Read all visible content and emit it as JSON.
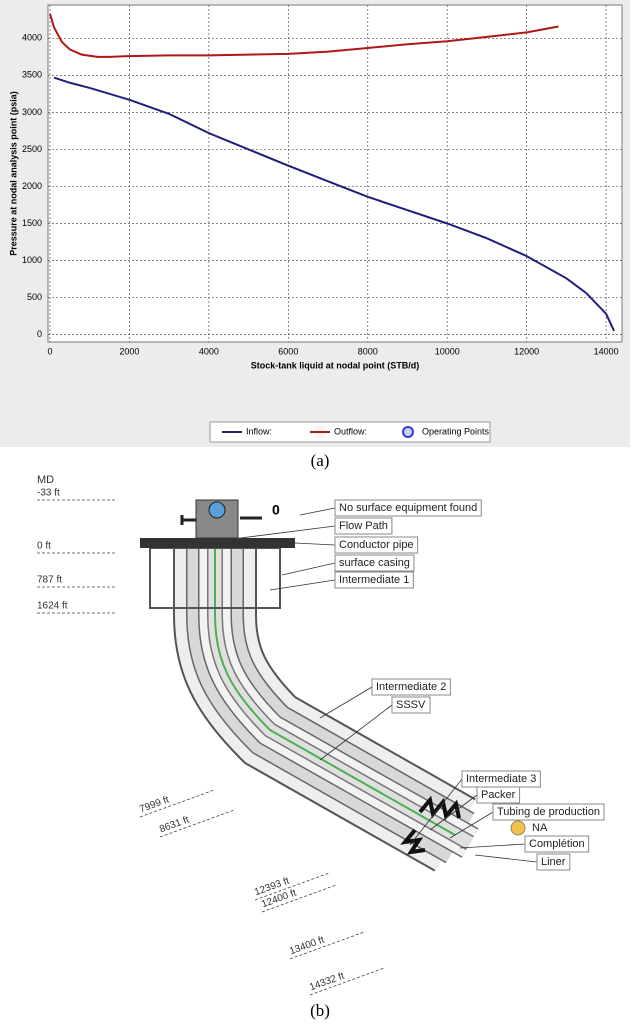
{
  "chart_data": {
    "type": "line",
    "caption": "(a)",
    "x_label": "Stock-tank liquid at nodal point (STB/d)",
    "y_label": "Pressure at nodal analysis point (psia)",
    "xlim": [
      -50,
      14400
    ],
    "ylim": [
      -100,
      4450
    ],
    "xticks": [
      0,
      2000,
      4000,
      6000,
      8000,
      10000,
      12000,
      14000
    ],
    "yticks": [
      0,
      500,
      1000,
      1500,
      2000,
      2500,
      3000,
      3500,
      4000
    ],
    "grid": true,
    "series": [
      {
        "name": "Inflow:",
        "color": "#1f1f7a",
        "x": [
          100,
          500,
          1000,
          2000,
          3000,
          4000,
          5000,
          6000,
          7000,
          8000,
          9000,
          10000,
          11000,
          12000,
          13000,
          13500,
          14000,
          14200
        ],
        "values": [
          3470,
          3400,
          3330,
          3170,
          2980,
          2720,
          2500,
          2280,
          2070,
          1860,
          1680,
          1500,
          1300,
          1060,
          760,
          560,
          280,
          50
        ]
      },
      {
        "name": "Outflow:",
        "color": "#b01818",
        "x": [
          0,
          100,
          300,
          500,
          800,
          1200,
          1500,
          2000,
          3000,
          4000,
          5000,
          6000,
          7000,
          8000,
          9000,
          10000,
          11000,
          12000,
          12800
        ],
        "values": [
          4330,
          4150,
          3950,
          3850,
          3780,
          3750,
          3750,
          3760,
          3770,
          3770,
          3780,
          3790,
          3820,
          3870,
          3920,
          3960,
          4020,
          4080,
          4160
        ]
      },
      {
        "name": "Operating Points",
        "color": "#3b3bd6",
        "marker": "circle",
        "x": [],
        "values": []
      }
    ]
  },
  "diagram": {
    "caption": "(b)",
    "md_header": "MD",
    "valve_label": "0",
    "depth_labels": [
      "-33 ft",
      "0 ft",
      "787 ft",
      "1624 ft",
      "7999 ft",
      "8631 ft",
      "12393 ft",
      "12400 ft",
      "13400 ft",
      "14332 ft"
    ],
    "callouts": [
      "No surface equipment found",
      "Flow Path",
      "Conductor pipe",
      "surface casing",
      "Intermediate 1",
      "Intermediate 2",
      "SSSV",
      "Intermediate 3",
      "Packer",
      "Tubing de production",
      "NA",
      "Complétion",
      "Liner"
    ]
  }
}
